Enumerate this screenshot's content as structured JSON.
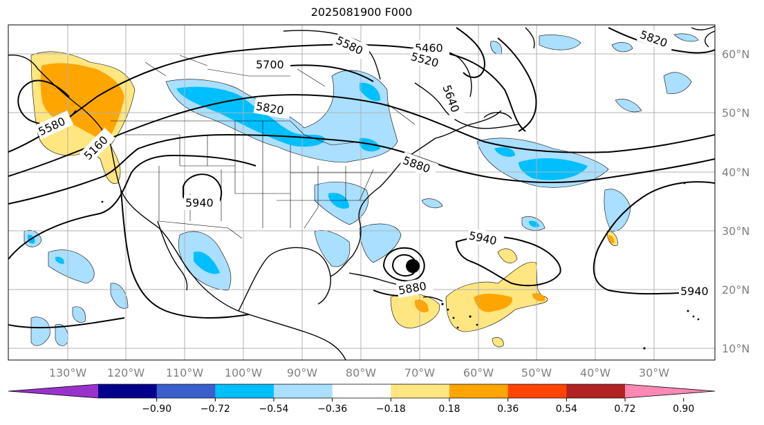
{
  "title": "2025081900 F000",
  "lon_ticks": [
    "130°W",
    "120°W",
    "110°W",
    "100°W",
    "90°W",
    "80°W",
    "70°W",
    "60°W",
    "50°W",
    "40°W",
    "30°W"
  ],
  "lat_ticks": [
    "60°N",
    "50°N",
    "40°N",
    "30°N",
    "20°N",
    "10°N"
  ],
  "colorbar": {
    "colors": [
      "#9932cc",
      "#00008b",
      "#3a5fcd",
      "#00bfff",
      "#aadfff",
      "#ffffff",
      "#ffe680",
      "#ffa500",
      "#ff4500",
      "#b22222",
      "#ff88b4"
    ],
    "labels": [
      "−0.90",
      "−0.72",
      "−0.54",
      "−0.36",
      "−0.18",
      "0.18",
      "0.36",
      "0.54",
      "0.72",
      "0.90"
    ]
  },
  "contour_labels": [
    "5460",
    "5820",
    "5580",
    "5520",
    "5700",
    "5640",
    "5580",
    "5160",
    "5820",
    "5880",
    "5940",
    "5940",
    "5880",
    "5940"
  ],
  "colors": {
    "light_blue": "#aadfff",
    "blue": "#00bfff",
    "light_orange": "#ffe680",
    "orange": "#ffa500",
    "grid": "#b0b0b0"
  }
}
